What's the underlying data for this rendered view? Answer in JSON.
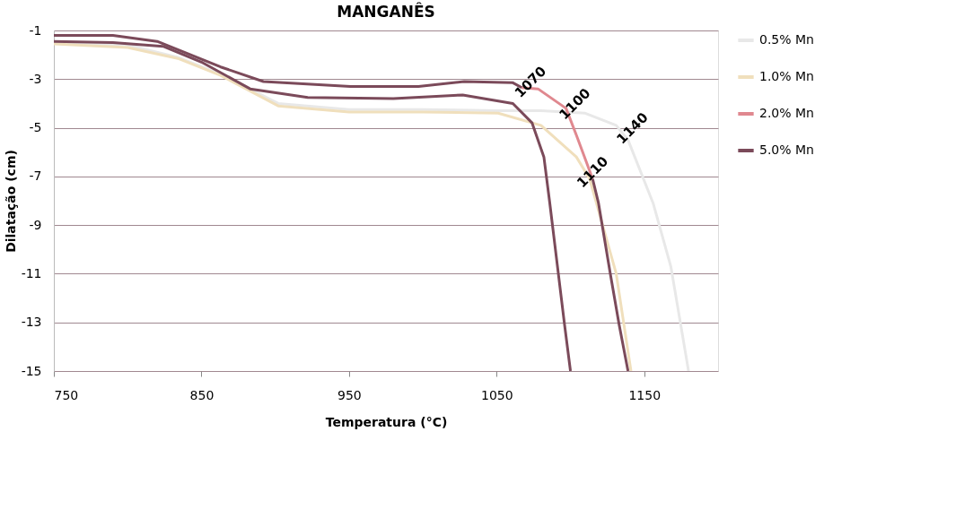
{
  "chart_data": {
    "type": "line",
    "title": "MANGANÊS",
    "xlabel": "Temperatura (°C)",
    "ylabel": "Dilatação (cm)",
    "xlim": [
      750,
      1200
    ],
    "xticks": [
      750,
      850,
      950,
      1050,
      1150
    ],
    "ylim": [
      -15,
      -1
    ],
    "yticks": [
      -1,
      -3,
      -5,
      -7,
      -9,
      -11,
      -13,
      -15
    ],
    "grid": "y",
    "legend": "right",
    "line_style": "solid",
    "marker": "none",
    "series": [
      {
        "name": "0.5% Mn",
        "color": "#e8e8e8",
        "x": [
          750,
          800,
          834,
          863,
          902,
          950,
          1000,
          1050,
          1080,
          1110,
          1131,
          1139,
          1156,
          1168,
          1180
        ],
        "values": [
          -1.5,
          -1.6,
          -2.1,
          -2.8,
          -4.0,
          -4.25,
          -4.25,
          -4.3,
          -4.3,
          -4.4,
          -4.9,
          -5.5,
          -8.1,
          -10.7,
          -15
        ]
      },
      {
        "name": "1.0% Mn",
        "color": "#f0dfbc",
        "x": [
          750,
          800,
          834,
          863,
          902,
          950,
          1000,
          1051,
          1080,
          1104,
          1113,
          1131,
          1141
        ],
        "values": [
          -1.55,
          -1.7,
          -2.15,
          -2.85,
          -4.1,
          -4.35,
          -4.35,
          -4.4,
          -4.9,
          -6.2,
          -7.1,
          -11.0,
          -15
        ]
      },
      {
        "name": "2.0% Mn",
        "color": "#e0888f",
        "x": [
          1067,
          1078,
          1097,
          1104,
          1115
        ],
        "values": [
          -3.35,
          -3.4,
          -4.2,
          -5.3,
          -7.1
        ]
      },
      {
        "name": "5.0% Mn",
        "color": "#7b4a5a",
        "x": [
          750,
          790,
          824,
          850,
          883,
          922,
          980,
          1027,
          1061,
          1074,
          1082,
          1086,
          1091,
          1096,
          1100
        ],
        "values": [
          -1.45,
          -1.5,
          -1.65,
          -2.3,
          -3.4,
          -3.75,
          -3.8,
          -3.65,
          -4.0,
          -4.8,
          -6.2,
          -8.1,
          -10.6,
          -13.1,
          -15
        ]
      },
      {
        "color": "#7b4a5a",
        "x": [
          750,
          790,
          820,
          863,
          892,
          951,
          997,
          1028,
          1061,
          1067
        ],
        "values": [
          -1.2,
          -1.2,
          -1.45,
          -2.5,
          -3.1,
          -3.3,
          -3.3,
          -3.1,
          -3.15,
          -3.35
        ]
      },
      {
        "color": "#7b4a5a",
        "x": [
          1115,
          1119,
          1127,
          1133,
          1139
        ],
        "values": [
          -7.1,
          -8.1,
          -11.0,
          -13.1,
          -15
        ]
      }
    ],
    "annotations": [
      {
        "text": "1070",
        "x": 1070,
        "y": -3.3
      },
      {
        "text": "1100",
        "x": 1100,
        "y": -4.2
      },
      {
        "text": "1110",
        "x": 1112,
        "y": -7.0
      },
      {
        "text": "1140",
        "x": 1139,
        "y": -5.2
      }
    ]
  }
}
